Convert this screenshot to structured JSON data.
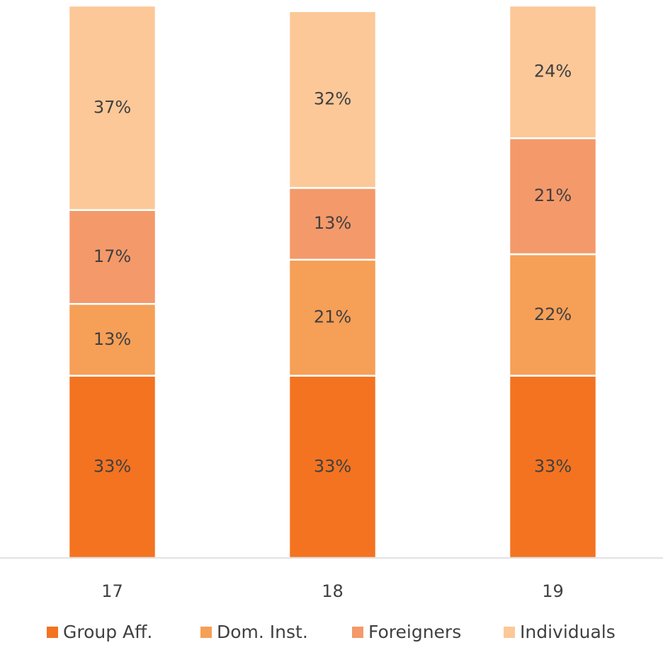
{
  "chart_data": {
    "type": "stacked_bar",
    "categories": [
      "17",
      "18",
      "19"
    ],
    "ylim": [
      0,
      100
    ],
    "series": [
      {
        "name": "Group Aff.",
        "color": "#f37321",
        "values": [
          33,
          33,
          33
        ],
        "value_labels": [
          "33%",
          "33%",
          "33%"
        ]
      },
      {
        "name": "Dom. Inst.",
        "color": "#f69f57",
        "values": [
          13,
          21,
          22
        ],
        "value_labels": [
          "13%",
          "21%",
          "22%"
        ]
      },
      {
        "name": "Foreigners",
        "color": "#f4996a",
        "values": [
          17,
          13,
          21
        ],
        "value_labels": [
          "17%",
          "13%",
          "21%"
        ]
      },
      {
        "name": "Individuals",
        "color": "#fcc898",
        "values": [
          37,
          32,
          24
        ],
        "value_labels": [
          "37%",
          "32%",
          "24%"
        ]
      }
    ],
    "legend": "bottom"
  }
}
